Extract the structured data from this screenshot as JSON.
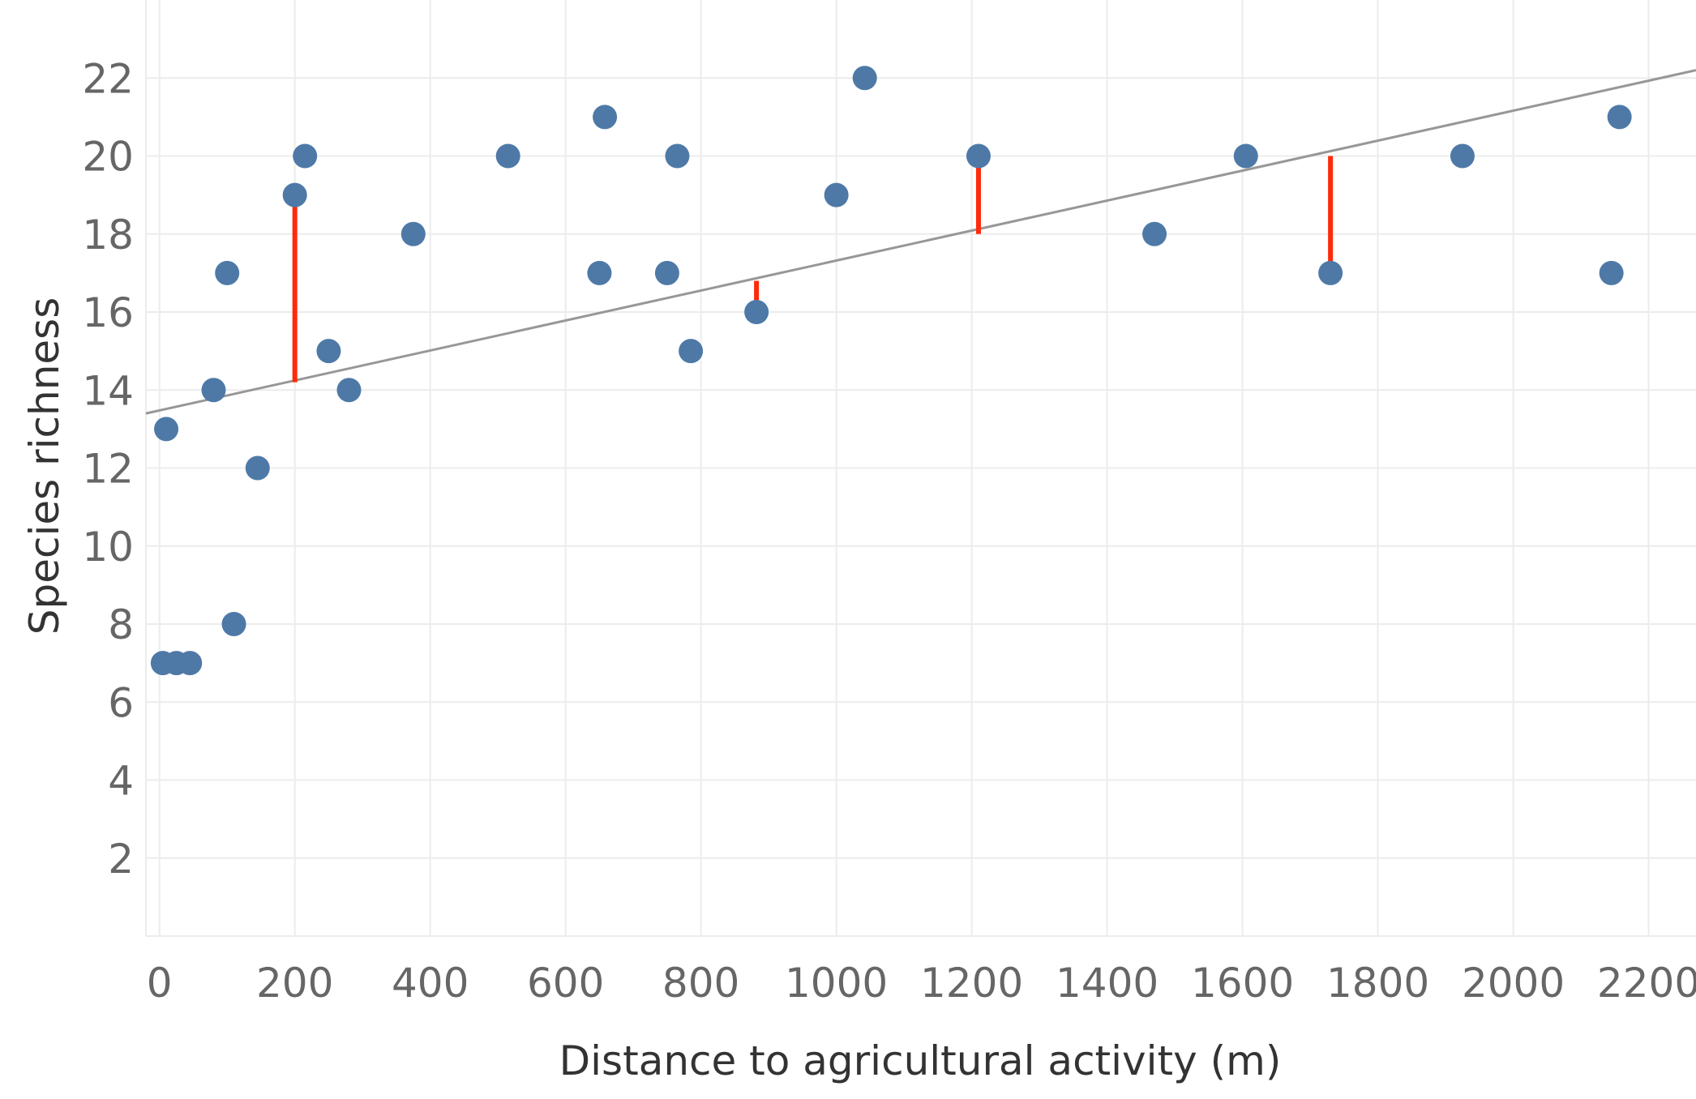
{
  "chart_data": {
    "type": "scatter",
    "title": "",
    "xlabel": "Distance to agricultural activity (m)",
    "ylabel": "Species richness",
    "xlim": [
      -20,
      2270
    ],
    "ylim": [
      0,
      24
    ],
    "x_ticks": [
      0,
      200,
      400,
      600,
      800,
      1000,
      1200,
      1400,
      1600,
      1800,
      2000,
      2200
    ],
    "y_ticks": [
      2,
      4,
      6,
      8,
      10,
      12,
      14,
      16,
      18,
      20,
      22
    ],
    "grid": true,
    "points": [
      {
        "x": 5,
        "y": 7
      },
      {
        "x": 25,
        "y": 7
      },
      {
        "x": 45,
        "y": 7
      },
      {
        "x": 10,
        "y": 13
      },
      {
        "x": 80,
        "y": 14
      },
      {
        "x": 100,
        "y": 17
      },
      {
        "x": 110,
        "y": 8
      },
      {
        "x": 145,
        "y": 12
      },
      {
        "x": 200,
        "y": 19
      },
      {
        "x": 215,
        "y": 20
      },
      {
        "x": 250,
        "y": 15
      },
      {
        "x": 280,
        "y": 14
      },
      {
        "x": 375,
        "y": 18
      },
      {
        "x": 515,
        "y": 20
      },
      {
        "x": 650,
        "y": 17
      },
      {
        "x": 658,
        "y": 21
      },
      {
        "x": 750,
        "y": 17
      },
      {
        "x": 765,
        "y": 20
      },
      {
        "x": 785,
        "y": 15
      },
      {
        "x": 882,
        "y": 16
      },
      {
        "x": 1000,
        "y": 19
      },
      {
        "x": 1042,
        "y": 22
      },
      {
        "x": 1210,
        "y": 20
      },
      {
        "x": 1470,
        "y": 18
      },
      {
        "x": 1605,
        "y": 20
      },
      {
        "x": 1730,
        "y": 17
      },
      {
        "x": 1925,
        "y": 20
      },
      {
        "x": 2145,
        "y": 17
      },
      {
        "x": 2157,
        "y": 21
      }
    ],
    "trendline": {
      "x0": -20,
      "y0": 13.4,
      "x1": 2270,
      "y1": 22.2
    },
    "residuals": [
      {
        "x": 200,
        "y_point": 19,
        "y_line": 14.2
      },
      {
        "x": 882,
        "y_point": 16,
        "y_line": 16.8
      },
      {
        "x": 1210,
        "y_point": 20,
        "y_line": 18.0
      },
      {
        "x": 1730,
        "y_point": 17,
        "y_line": 20.0
      }
    ],
    "colors": {
      "points": "#4e79a7",
      "residuals": "#ff2a0a",
      "trendline": "#979797",
      "grid": "#ececec"
    }
  }
}
